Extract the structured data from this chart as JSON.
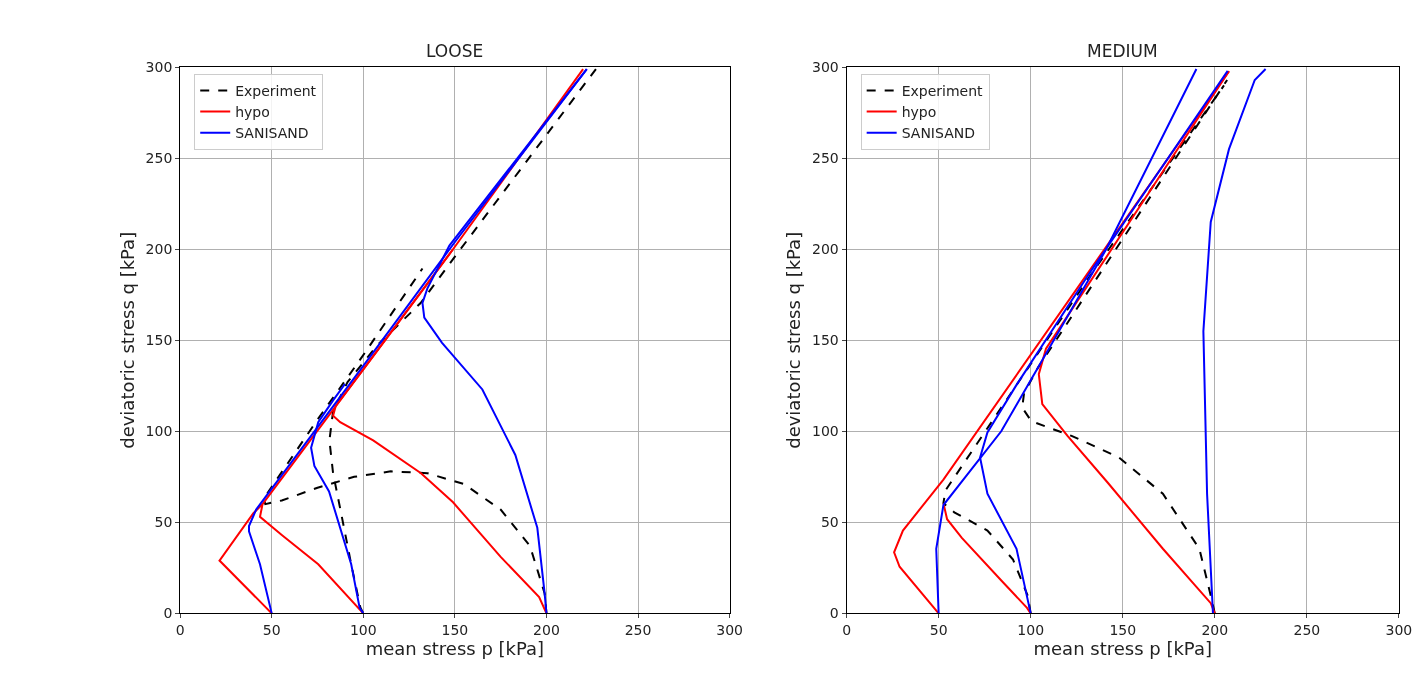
{
  "chart_data": [
    {
      "type": "line",
      "title": "LOOSE",
      "xlabel": "mean stress p [kPa]",
      "ylabel": "deviatoric stress q [kPa]",
      "xlim": [
        0,
        300
      ],
      "ylim": [
        0,
        300
      ],
      "xticks": [
        0,
        50,
        100,
        150,
        200,
        250,
        300
      ],
      "yticks": [
        0,
        50,
        100,
        150,
        200,
        250,
        300
      ],
      "grid": true,
      "legend": "top left",
      "marker": "none",
      "series": [
        {
          "name": "Experiment",
          "color": "#000000",
          "line_style": "dashed",
          "x": [
            100,
            98.4,
            93.4,
            87.5,
            83.5,
            81.5,
            83.5,
            91.4,
            107.4,
            131.3,
            149,
            227
          ],
          "values": [
            0,
            3.2,
            27,
            57,
            77,
            95,
            111,
            127,
            147,
            170.5,
            194.6,
            299
          ]
        },
        {
          "color": "#000000",
          "line_style": "dashed",
          "x": [
            200,
            199,
            191,
            175,
            155,
            135,
            115,
            95,
            75,
            55.5,
            46.5,
            45.6,
            75.4,
            99.4,
            132.3
          ],
          "values": [
            0,
            11,
            37,
            57,
            71,
            77,
            78,
            75,
            69,
            62,
            60,
            63,
            107,
            141,
            189.4
          ]
        },
        {
          "name": "hypo",
          "color": "#ff0000",
          "line_style": "solid",
          "x": [
            50,
            21.5,
            40,
            45
          ],
          "values": [
            0,
            29,
            55,
            60
          ]
        },
        {
          "color": "#ff0000",
          "line_style": "solid",
          "x": [
            100,
            75.4,
            55.5,
            43.6,
            45,
            100,
            149,
            220
          ],
          "values": [
            0,
            27,
            43,
            53,
            60,
            134,
            200,
            299
          ]
        },
        {
          "color": "#ff0000",
          "line_style": "solid",
          "x": [
            200,
            196,
            175,
            149,
            131.5,
            105.4,
            87.4,
            83.5,
            85,
            100,
            149
          ],
          "values": [
            0,
            9,
            31,
            61,
            77,
            95,
            105,
            108.6,
            114,
            134,
            200
          ]
        },
        {
          "name": "SANISAND",
          "color": "#0000ff",
          "line_style": "solid",
          "x": [
            50,
            43.6,
            37.6,
            37.6,
            41.5,
            100,
            150,
            222
          ],
          "values": [
            0,
            27,
            45,
            48,
            57,
            136,
            204,
            299
          ]
        },
        {
          "color": "#0000ff",
          "line_style": "solid",
          "x": [
            100,
            98,
            93.4,
            81.3,
            73.3,
            71.5,
            75.4,
            83.5,
            90
          ],
          "values": [
            0,
            3,
            27,
            67,
            81,
            91,
            105,
            117,
            126
          ]
        },
        {
          "color": "#0000ff",
          "line_style": "solid",
          "x": [
            200,
            199,
            195,
            183,
            165,
            143,
            133.3,
            132.3,
            135,
            147,
            222
          ],
          "values": [
            0,
            11,
            47,
            87,
            123,
            148.6,
            162.5,
            170.5,
            178.5,
            202,
            299
          ]
        }
      ]
    },
    {
      "type": "line",
      "title": "MEDIUM",
      "xlabel": "mean stress p [kPa]",
      "ylabel": "deviatoric stress q [kPa]",
      "xlim": [
        0,
        300
      ],
      "ylim": [
        0,
        300
      ],
      "xticks": [
        0,
        50,
        100,
        150,
        200,
        250,
        300
      ],
      "yticks": [
        0,
        50,
        100,
        150,
        200,
        250,
        300
      ],
      "grid": true,
      "legend": "top left",
      "marker": "none",
      "series": [
        {
          "name": "Experiment",
          "color": "#000000",
          "line_style": "dashed",
          "x": [
            100,
            98.4,
            90.4,
            76.5,
            58.5,
            52.6,
            53.7,
            132,
            205
          ],
          "values": [
            0,
            9.7,
            29.6,
            45.5,
            55.5,
            60.5,
            67.5,
            185,
            290
          ]
        },
        {
          "color": "#000000",
          "line_style": "dashed",
          "x": [
            200,
            197.8,
            191.6,
            171.8,
            148,
            122.2,
            100.4,
            95.4,
            96.4,
            104,
            206.7
          ],
          "values": [
            0,
            9.7,
            35.5,
            65.7,
            85.6,
            97.5,
            105.5,
            113,
            121,
            135,
            293
          ]
        },
        {
          "name": "hypo",
          "color": "#ff0000",
          "line_style": "solid",
          "x": [
            50,
            28.8,
            25.8,
            30.6,
            52.6,
            207.7
          ],
          "values": [
            0,
            25.6,
            33.5,
            45.5,
            73.5,
            297.8
          ]
        },
        {
          "color": "#ff0000",
          "line_style": "solid",
          "x": [
            100,
            98,
            84.3,
            62.6,
            54.6,
            52.6
          ],
          "values": [
            0,
            3,
            17.8,
            41.5,
            51.7,
            60.5
          ]
        },
        {
          "color": "#ff0000",
          "line_style": "solid",
          "x": [
            200,
            197.8,
            171.8,
            142,
            120,
            106.3,
            104.4,
            108.3,
            207.7
          ],
          "values": [
            0,
            5.6,
            35.5,
            71.6,
            97.5,
            115,
            131.4,
            145.4,
            297.8
          ]
        },
        {
          "name": "SANISAND",
          "color": "#0000ff",
          "line_style": "solid",
          "x": [
            50,
            48.7,
            52.6,
            84,
            141,
            190
          ],
          "values": [
            0,
            35.5,
            59.5,
            100,
            200,
            299
          ]
        },
        {
          "color": "#0000ff",
          "line_style": "solid",
          "x": [
            100,
            92.3,
            76.5,
            72.5,
            76.5,
            92.3,
            132,
            207
          ],
          "values": [
            0,
            35.5,
            65.7,
            85.6,
            99.4,
            125.5,
            187,
            298
          ]
        },
        {
          "color": "#0000ff",
          "line_style": "solid",
          "x": [
            199,
            195.8,
            193.8,
            197.8,
            207.7,
            221.7,
            227.6
          ],
          "values": [
            0,
            65.7,
            155,
            215,
            255,
            293,
            299
          ]
        }
      ]
    }
  ]
}
